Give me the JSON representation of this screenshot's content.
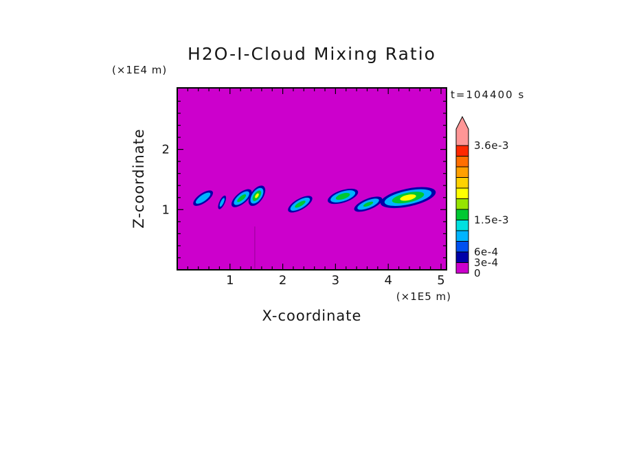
{
  "chart_data": {
    "type": "contour",
    "title": "H2O-I-Cloud Mixing Ratio",
    "xlabel": "X-coordinate",
    "ylabel": "Z-coordinate",
    "x_unit": "(×1E5 m)",
    "y_unit": "(×1E4 m)",
    "time_label": "t=104400 s",
    "x_axis": {
      "min": 0,
      "max": 5.1,
      "major_ticks": [
        1,
        2,
        3,
        4,
        5
      ]
    },
    "z_axis": {
      "min": 0,
      "max": 3.0,
      "major_ticks": [
        1,
        2
      ]
    },
    "minor_tick_step": 0.2,
    "grid": false,
    "background_value_color": "#CC00CC",
    "frame_color": "#000000",
    "colorbar": {
      "levels": [
        0,
        0.0003,
        0.0006,
        0.0009,
        0.0012,
        0.0015,
        0.0018,
        0.0021,
        0.0024,
        0.0027,
        0.003,
        0.0033,
        0.0036
      ],
      "colors": [
        "#CC00CC",
        "#0000A8",
        "#0050F0",
        "#00B4FF",
        "#00E0E0",
        "#00C832",
        "#96E400",
        "#FFFF00",
        "#FFD200",
        "#FFA000",
        "#FF6E00",
        "#FF2800"
      ],
      "over_color": "#FF9696",
      "labels": [
        {
          "text": "3.6e-3",
          "level_index": 12
        },
        {
          "text": "1.5e-3",
          "level_index": 5
        },
        {
          "text": "6e-4",
          "level_index": 2
        },
        {
          "text": "3e-4",
          "level_index": 1
        },
        {
          "text": "0",
          "level_index": 0
        }
      ]
    },
    "cloud_features": [
      {
        "x": 0.49,
        "z": 1.19,
        "tilt": -35,
        "layers": [
          {
            "color": "#0000A8",
            "rx": 0.22,
            "ry": 0.08
          },
          {
            "color": "#00B4FF",
            "rx": 0.165,
            "ry": 0.052
          }
        ]
      },
      {
        "x": 0.85,
        "z": 1.12,
        "tilt": -65,
        "layers": [
          {
            "color": "#0000A8",
            "rx": 0.14,
            "ry": 0.046
          },
          {
            "color": "#00B4FF",
            "rx": 0.09,
            "ry": 0.025
          }
        ]
      },
      {
        "x": 1.22,
        "z": 1.19,
        "tilt": -40,
        "layers": [
          {
            "color": "#0000A8",
            "rx": 0.235,
            "ry": 0.091
          },
          {
            "color": "#00B4FF",
            "rx": 0.18,
            "ry": 0.068
          },
          {
            "color": "#00C832",
            "rx": 0.105,
            "ry": 0.034
          }
        ]
      },
      {
        "x": 1.51,
        "z": 1.23,
        "tilt": -55,
        "layers": [
          {
            "color": "#0000A8",
            "rx": 0.22,
            "ry": 0.103
          },
          {
            "color": "#00B4FF",
            "rx": 0.17,
            "ry": 0.08
          },
          {
            "color": "#00C832",
            "rx": 0.115,
            "ry": 0.051
          },
          {
            "color": "#FFFF00",
            "rx": 0.052,
            "ry": 0.023
          }
        ]
      },
      {
        "x": 2.33,
        "z": 1.09,
        "tilt": -30,
        "layers": [
          {
            "color": "#0000A8",
            "rx": 0.26,
            "ry": 0.091
          },
          {
            "color": "#00B4FF",
            "rx": 0.21,
            "ry": 0.068
          },
          {
            "color": "#00C832",
            "rx": 0.115,
            "ry": 0.034
          }
        ]
      },
      {
        "x": 3.14,
        "z": 1.22,
        "tilt": -18,
        "layers": [
          {
            "color": "#0000A8",
            "rx": 0.3,
            "ry": 0.103
          },
          {
            "color": "#00B4FF",
            "rx": 0.245,
            "ry": 0.08
          },
          {
            "color": "#00C832",
            "rx": 0.14,
            "ry": 0.046
          }
        ]
      },
      {
        "x": 3.62,
        "z": 1.09,
        "tilt": -22,
        "layers": [
          {
            "color": "#0000A8",
            "rx": 0.285,
            "ry": 0.091
          },
          {
            "color": "#00B4FF",
            "rx": 0.22,
            "ry": 0.063
          },
          {
            "color": "#00C832",
            "rx": 0.1,
            "ry": 0.029
          }
        ]
      },
      {
        "x": 4.375,
        "z": 1.2,
        "tilt": -12,
        "layers": [
          {
            "color": "#0000A8",
            "rx": 0.535,
            "ry": 0.148
          },
          {
            "color": "#00B4FF",
            "rx": 0.455,
            "ry": 0.114
          },
          {
            "color": "#00C832",
            "rx": 0.31,
            "ry": 0.08
          },
          {
            "color": "#FFFF00",
            "rx": 0.155,
            "ry": 0.046
          }
        ]
      }
    ],
    "faint_streak": {
      "x": 1.47,
      "z_bottom": 0.02,
      "z_top": 0.72,
      "color": "#A800A8"
    }
  }
}
